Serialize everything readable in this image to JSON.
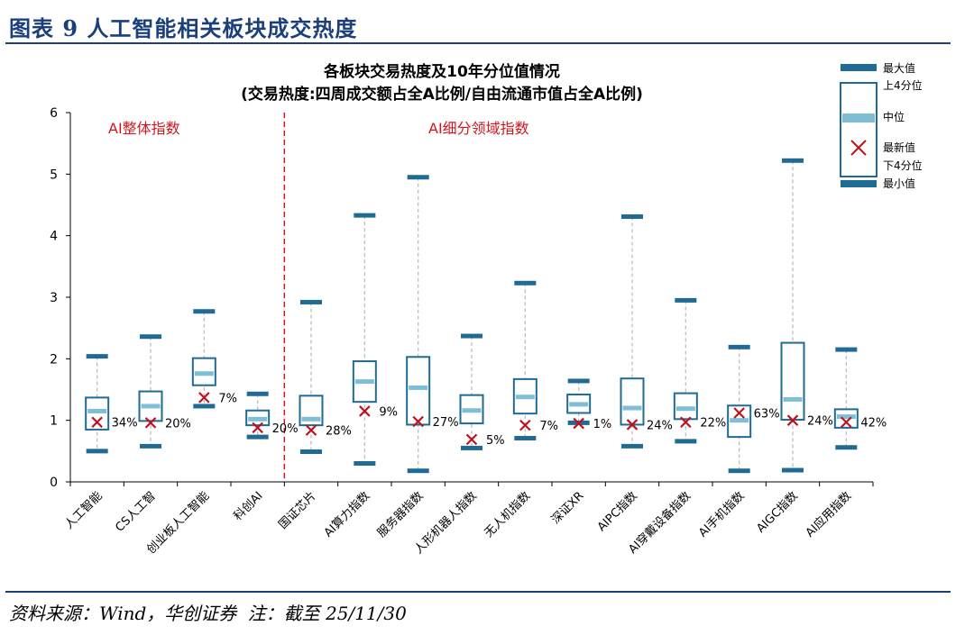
{
  "header": {
    "figure_title": "图表 9   人工智能相关板块成交热度"
  },
  "footer": {
    "source": "资料来源：Wind，华创证券",
    "note": "注：截至 25/11/30"
  },
  "colors": {
    "title_blue": "#1b3f7a",
    "box_stroke": "#1f6b94",
    "whisker_cap": "#1f6b94",
    "median": "#7fbfd6",
    "marker": "#c0121e",
    "divider": "#d1161e",
    "dashed": "#b9b9b9"
  },
  "chart_data": {
    "type": "box",
    "title": "各板块交易热度及10年分位值情况",
    "subtitle": "(交易热度:四周成交额占全A比例/自由流通市值占全A比例)",
    "ylim": [
      0,
      6
    ],
    "yticks": [
      "0",
      "1",
      "2",
      "3",
      "4",
      "5",
      "6"
    ],
    "group_labels": [
      "AI整体指数",
      "AI细分领域指数"
    ],
    "categories": [
      "人工智能",
      "CS人工智",
      "创业板人工智能",
      "科创AI",
      "国证芯片",
      "AI算力指数",
      "服务器指数",
      "人形机器人指数",
      "无人机指数",
      "深证XR",
      "AIPC指数",
      "AI穿戴设备指数",
      "AI手机指数",
      "AIGC指数",
      "AI应用指数"
    ],
    "series": [
      {
        "name": "最大值",
        "values": [
          2.04,
          2.36,
          2.77,
          1.43,
          2.92,
          4.33,
          4.95,
          2.37,
          3.23,
          1.64,
          4.31,
          2.95,
          2.19,
          5.22,
          2.15
        ]
      },
      {
        "name": "上4分位",
        "values": [
          1.37,
          1.47,
          2.01,
          1.16,
          1.4,
          1.96,
          2.03,
          1.41,
          1.67,
          1.42,
          1.68,
          1.44,
          1.24,
          2.26,
          1.18
        ]
      },
      {
        "name": "中位",
        "values": [
          1.15,
          1.23,
          1.76,
          1.02,
          1.02,
          1.63,
          1.53,
          1.16,
          1.38,
          1.26,
          1.2,
          1.19,
          1.0,
          1.34,
          1.06
        ]
      },
      {
        "name": "最新值",
        "values": [
          0.97,
          0.96,
          1.37,
          0.88,
          0.84,
          1.15,
          0.98,
          0.69,
          0.92,
          0.95,
          0.93,
          0.97,
          1.12,
          1.0,
          0.97
        ]
      },
      {
        "name": "下4分位",
        "values": [
          0.85,
          0.99,
          1.57,
          0.92,
          0.92,
          1.3,
          0.93,
          0.95,
          1.11,
          1.12,
          0.93,
          1.02,
          0.73,
          1.01,
          0.88
        ]
      },
      {
        "name": "最小值",
        "values": [
          0.5,
          0.58,
          1.23,
          0.73,
          0.49,
          0.3,
          0.18,
          0.55,
          0.71,
          0.96,
          0.58,
          0.66,
          0.18,
          0.19,
          0.56
        ]
      }
    ],
    "percentile_labels": [
      "34%",
      "20%",
      "7%",
      "20%",
      "28%",
      "9%",
      "27%",
      "5%",
      "7%",
      "1%",
      "24%",
      "22%",
      "63%",
      "24%",
      "42%"
    ],
    "legend": [
      "最大值",
      "上4分位",
      "中位",
      "最新值",
      "下4分位",
      "最小值"
    ]
  }
}
